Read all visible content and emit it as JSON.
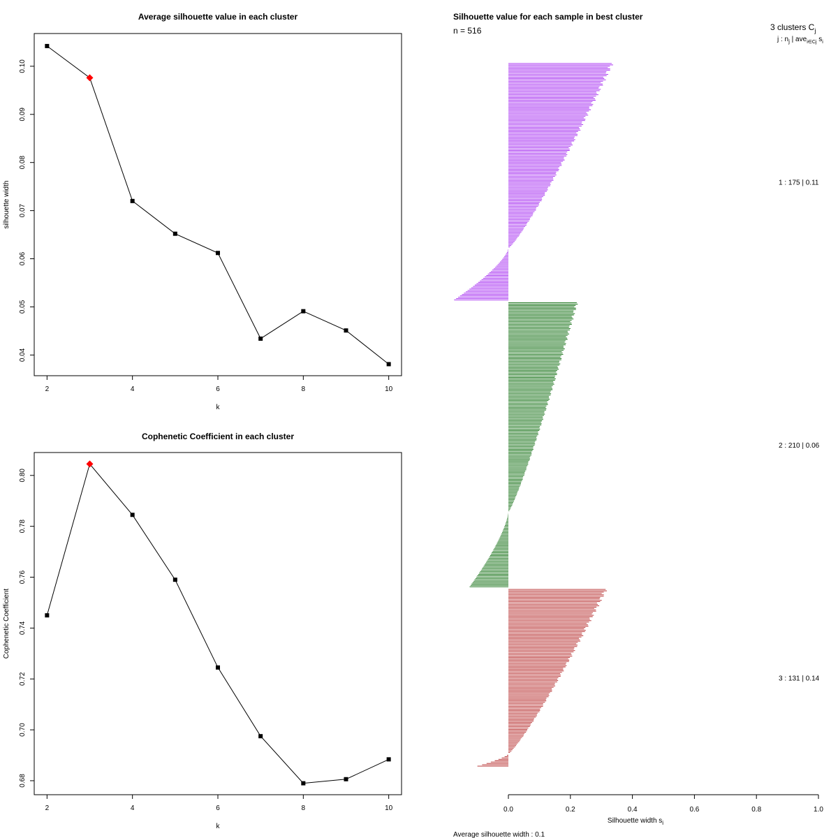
{
  "chart_data": [
    {
      "type": "line",
      "title": "Average silhouette value in each cluster",
      "xlabel": "k",
      "ylabel": "silhouette width",
      "x": [
        2,
        3,
        4,
        5,
        6,
        7,
        8,
        9,
        10
      ],
      "y": [
        0.1042,
        0.0976,
        0.072,
        0.0652,
        0.0612,
        0.0434,
        0.0491,
        0.0451,
        0.0381
      ],
      "highlight": {
        "x": 3,
        "y": 0.0976
      },
      "xticks": [
        2,
        4,
        6,
        8,
        10
      ],
      "yticks": [
        0.04,
        0.05,
        0.06,
        0.07,
        0.08,
        0.09,
        0.1
      ],
      "ytick_labels": [
        "0.04",
        "0.05",
        "0.06",
        "0.07",
        "0.08",
        "0.09",
        "0.10"
      ],
      "xlim": [
        1.7,
        10.3
      ],
      "ylim": [
        0.0357,
        0.1068
      ]
    },
    {
      "type": "line",
      "title": "Cophenetic Coefficient in each cluster",
      "xlabel": "k",
      "ylabel": "Cophenetic Coefficient",
      "x": [
        2,
        3,
        4,
        5,
        6,
        7,
        8,
        9,
        10
      ],
      "y": [
        0.745,
        0.8045,
        0.7845,
        0.759,
        0.7245,
        0.6975,
        0.679,
        0.6806,
        0.6884
      ],
      "highlight": {
        "x": 3,
        "y": 0.8045
      },
      "xticks": [
        2,
        4,
        6,
        8,
        10
      ],
      "yticks": [
        0.68,
        0.7,
        0.72,
        0.74,
        0.76,
        0.78,
        0.8
      ],
      "ytick_labels": [
        "0.68",
        "0.70",
        "0.72",
        "0.74",
        "0.76",
        "0.78",
        "0.80"
      ],
      "xlim": [
        1.7,
        10.3
      ],
      "ylim": [
        0.6745,
        0.809
      ]
    },
    {
      "type": "bar",
      "orientation": "horizontal",
      "title": "Silhouette value for each sample in best cluster",
      "n_label": "n = 516",
      "header_line1": "3  clusters  C",
      "header_sub1": "j",
      "header_line2": "j :  n",
      "header_sub2a": "j",
      "header_line2b": " | ave",
      "header_sub2b": "i∈Cj",
      "header_line2c": "  s",
      "header_sub2c": "i",
      "xlabel": "Silhouette width  s",
      "xlabel_sub": "i",
      "xlim": [
        0,
        1
      ],
      "xticks": [
        0,
        0.2,
        0.4,
        0.6,
        0.8,
        1.0
      ],
      "xtick_labels": [
        "0.0",
        "0.2",
        "0.4",
        "0.6",
        "0.8",
        "1.0"
      ],
      "average_text": "Average silhouette width :  0.1",
      "clusters": [
        {
          "id": 1,
          "n": 175,
          "avg": 0.11,
          "label": "1 :   175  |  0.11",
          "color": "#A020F0",
          "max": 0.34,
          "min": -0.175,
          "pos_frac": 0.78
        },
        {
          "id": 2,
          "n": 210,
          "avg": 0.06,
          "label": "2 :   210  |  0.06",
          "color": "#006400",
          "max": 0.225,
          "min": -0.125,
          "pos_frac": 0.74
        },
        {
          "id": 3,
          "n": 131,
          "avg": 0.14,
          "label": "3 :   131  |  0.14",
          "color": "#B22222",
          "max": 0.32,
          "min": -0.1,
          "pos_frac": 0.93
        }
      ]
    }
  ]
}
